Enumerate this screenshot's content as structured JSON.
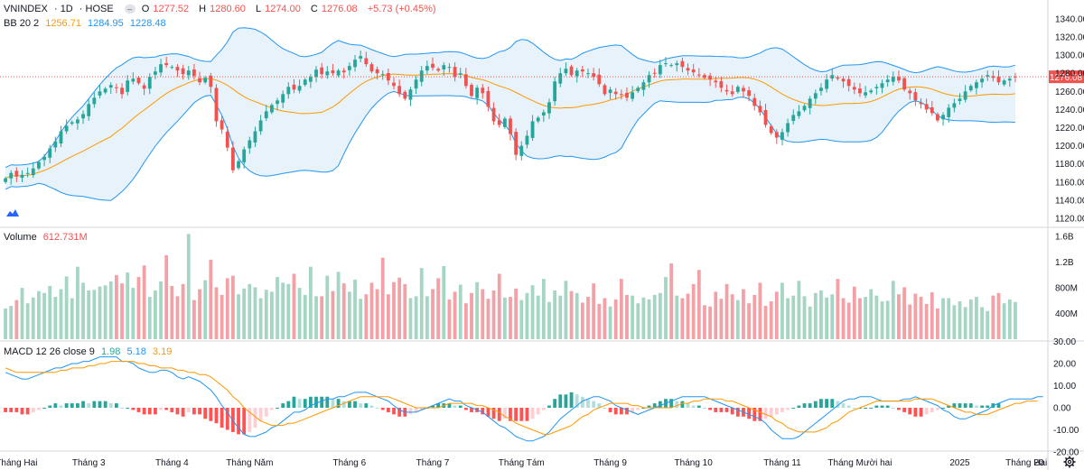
{
  "header": {
    "symbol": "VNINDEX",
    "interval": "1D",
    "exchange": "HOSE",
    "collapse_glyph": "–",
    "open_label": "O",
    "open": "1277.52",
    "high_label": "H",
    "high": "1280.60",
    "low_label": "L",
    "low": "1274.00",
    "close_label": "C",
    "close": "1276.08",
    "change": "+5.73 (+0.45%)"
  },
  "bb_legend": {
    "name": "BB 20 2",
    "basis": "1256.71",
    "upper": "1284.95",
    "lower": "1228.48"
  },
  "volume_legend": {
    "name": "Volume",
    "value": "612.731M"
  },
  "macd_legend": {
    "name": "MACD 12 26 close 9",
    "hist": "1.98",
    "macd": "5.18",
    "signal": "3.19"
  },
  "colors": {
    "up": "#26a69a",
    "down": "#ef5350",
    "vol_up": "#a5d6c3",
    "vol_down": "#f2a1a6",
    "bb_basis": "#ff9800",
    "bb_band": "#2196f3",
    "bb_fill": "#e3f0fa",
    "macd_line": "#2196f3",
    "signal_line": "#ff9800",
    "hist_up_strong": "#26a69a",
    "hist_up_weak": "#b2dfdb",
    "hist_down_strong": "#ff5252",
    "hist_down_weak": "#ffcdd2",
    "last_price_bg": "#ef5350",
    "text_down": "#ef5350"
  },
  "chart_data": [
    {
      "type": "candlestick",
      "title": "VNINDEX 1D HOSE",
      "ylim": [
        1110,
        1345
      ],
      "y_ticks": [
        "1340.00",
        "1320.00",
        "1300.00",
        "1280.00",
        "1260.00",
        "1240.00",
        "1220.00",
        "1200.00",
        "1180.00",
        "1160.00",
        "1140.00",
        "1120.00"
      ],
      "y_tick_values": [
        1340,
        1320,
        1300,
        1280,
        1260,
        1240,
        1220,
        1200,
        1180,
        1160,
        1140,
        1120
      ],
      "last_price": 1276.08,
      "last_price_label": "1276.08",
      "x_labels": [
        "Tháng Hai",
        "Tháng 3",
        "Tháng 4",
        "Tháng Năm",
        "Tháng 6",
        "Tháng 7",
        "Tháng Tám",
        "Tháng 9",
        "Tháng 10",
        "Tháng 11",
        "Tháng Mười hai",
        "2025",
        "Tháng Hai",
        "20"
      ],
      "x_label_bar_index": [
        2,
        15,
        30,
        44,
        62,
        77,
        93,
        109,
        124,
        140,
        154,
        172,
        184,
        196
      ],
      "closes": [
        1164,
        1170,
        1166,
        1168,
        1170,
        1175,
        1182,
        1188,
        1197,
        1205,
        1216,
        1222,
        1226,
        1229,
        1235,
        1246,
        1253,
        1260,
        1263,
        1267,
        1264,
        1257,
        1272,
        1274,
        1269,
        1263,
        1276,
        1282,
        1290,
        1289,
        1287,
        1283,
        1279,
        1283,
        1277,
        1270,
        1275,
        1265,
        1227,
        1218,
        1198,
        1173,
        1183,
        1196,
        1206,
        1216,
        1228,
        1238,
        1245,
        1250,
        1257,
        1265,
        1262,
        1266,
        1273,
        1276,
        1284,
        1279,
        1282,
        1280,
        1283,
        1281,
        1288,
        1295,
        1299,
        1290,
        1282,
        1280,
        1279,
        1272,
        1266,
        1257,
        1252,
        1262,
        1273,
        1283,
        1288,
        1286,
        1283,
        1289,
        1287,
        1276,
        1280,
        1266,
        1255,
        1264,
        1258,
        1243,
        1227,
        1223,
        1230,
        1213,
        1190,
        1200,
        1211,
        1227,
        1231,
        1237,
        1248,
        1271,
        1280,
        1285,
        1278,
        1283,
        1282,
        1280,
        1276,
        1268,
        1257,
        1262,
        1257,
        1256,
        1253,
        1259,
        1264,
        1270,
        1278,
        1280,
        1289,
        1291,
        1289,
        1291,
        1287,
        1283,
        1281,
        1278,
        1275,
        1273,
        1270,
        1264,
        1260,
        1257,
        1265,
        1260,
        1255,
        1244,
        1237,
        1223,
        1214,
        1209,
        1215,
        1225,
        1234,
        1238,
        1244,
        1252,
        1258,
        1264,
        1273,
        1278,
        1274,
        1271,
        1266,
        1262,
        1258,
        1259,
        1261,
        1265,
        1269,
        1273,
        1276,
        1272,
        1262,
        1258,
        1250,
        1246,
        1240,
        1236,
        1228,
        1234,
        1242,
        1247,
        1252,
        1260,
        1266,
        1270,
        1274,
        1278,
        1275,
        1270,
        1272,
        1274,
        1276
      ]
    },
    {
      "type": "bar",
      "title": "Volume",
      "y_ticks": [
        "1.6B",
        "1.2B",
        "800M",
        "400M"
      ],
      "y_tick_values": [
        1600,
        1200,
        800,
        400
      ],
      "ylim": [
        0,
        1750
      ],
      "unit": "M",
      "values": [
        480,
        520,
        610,
        800,
        560,
        650,
        750,
        720,
        830,
        660,
        780,
        980,
        640,
        1130,
        880,
        760,
        770,
        820,
        840,
        900,
        1000,
        870,
        1040,
        800,
        970,
        1150,
        660,
        760,
        900,
        1310,
        830,
        670,
        860,
        1640,
        610,
        780,
        920,
        1240,
        810,
        690,
        950,
        990,
        700,
        790,
        860,
        810,
        640,
        770,
        740,
        970,
        880,
        860,
        1020,
        800,
        690,
        1130,
        670,
        670,
        990,
        750,
        1050,
        870,
        740,
        930,
        630,
        700,
        880,
        780,
        1270,
        700,
        890,
        960,
        860,
        640,
        670,
        1110,
        670,
        780,
        950,
        1140,
        620,
        740,
        850,
        560,
        720,
        890,
        780,
        630,
        760,
        1020,
        650,
        660,
        790,
        610,
        720,
        840,
        680,
        940,
        580,
        760,
        680,
        910,
        750,
        720,
        570,
        660,
        870,
        550,
        640,
        510,
        620,
        940,
        690,
        680,
        560,
        650,
        620,
        690,
        720,
        970,
        1180,
        680,
        640,
        710,
        860,
        1080,
        530,
        510,
        740,
        630,
        860,
        700,
        610,
        780,
        560,
        690,
        880,
        520,
        590,
        740,
        880,
        640,
        680,
        910,
        670,
        510,
        720,
        760,
        650,
        700,
        940,
        640,
        570,
        820,
        640,
        660,
        780,
        680,
        590,
        600,
        910,
        700,
        810,
        540,
        710,
        660,
        550,
        730,
        480,
        640,
        640,
        530,
        590,
        500,
        620,
        660,
        500,
        440,
        680,
        720,
        560,
        620,
        580,
        480,
        600,
        520,
        530,
        620,
        700,
        640,
        590,
        760,
        690,
        650,
        613
      ]
    },
    {
      "type": "line",
      "title": "MACD 12 26 close 9",
      "y_ticks": [
        "30.00",
        "20.00",
        "10.00",
        "0.00",
        "-10.00",
        "-20.00"
      ],
      "y_tick_values": [
        30,
        20,
        10,
        0,
        -10,
        -20
      ],
      "ylim": [
        -22,
        30
      ],
      "series": [
        {
          "name": "MACD",
          "values": [
            16,
            15,
            14,
            13,
            13,
            14,
            15,
            16,
            17,
            18,
            18,
            19,
            20,
            20,
            21,
            21,
            22,
            23,
            23,
            23,
            23,
            21,
            21,
            20,
            18,
            17,
            16,
            16,
            17,
            17,
            16,
            14,
            13,
            14,
            13,
            12,
            10,
            8,
            5,
            1,
            -2,
            -6,
            -9,
            -12,
            -13,
            -13,
            -12,
            -11,
            -9,
            -8,
            -6,
            -4,
            -2,
            -2,
            -1,
            1,
            2,
            3,
            4,
            4,
            5,
            5,
            6,
            7,
            7,
            7,
            6,
            5,
            4,
            3,
            1,
            -1,
            -2,
            -2,
            -2,
            -1,
            0,
            1,
            2,
            3,
            4,
            3,
            3,
            1,
            0,
            -1,
            -2,
            -4,
            -6,
            -8,
            -9,
            -11,
            -13,
            -14,
            -15,
            -15,
            -14,
            -13,
            -11,
            -8,
            -5,
            -3,
            -1,
            1,
            3,
            4,
            5,
            5,
            4,
            3,
            1,
            0,
            -1,
            -2,
            -3,
            -2,
            -1,
            0,
            1,
            2,
            3,
            4,
            5,
            5,
            5,
            5,
            5,
            4,
            3,
            2,
            1,
            0,
            -1,
            -2,
            -3,
            -4,
            -5,
            -7,
            -10,
            -12,
            -14,
            -14,
            -14,
            -13,
            -11,
            -9,
            -7,
            -5,
            -3,
            -1,
            1,
            3,
            4,
            4,
            5,
            5,
            5,
            4,
            3,
            3,
            3,
            3,
            4,
            4,
            5,
            4,
            3,
            2,
            1,
            -1,
            -2,
            -4,
            -5,
            -5,
            -4,
            -3,
            -2,
            -1,
            1,
            2,
            3,
            4,
            4,
            4,
            4,
            4,
            5,
            5
          ]
        },
        {
          "name": "Signal",
          "values": [
            18,
            17,
            16,
            16,
            16,
            16,
            16,
            16,
            16,
            16,
            17,
            17,
            18,
            18,
            18,
            19,
            19,
            20,
            20,
            21,
            21,
            21,
            21,
            21,
            20,
            20,
            19,
            19,
            18,
            18,
            18,
            17,
            17,
            16,
            16,
            15,
            15,
            14,
            12,
            10,
            8,
            5,
            3,
            0,
            -2,
            -4,
            -6,
            -7,
            -8,
            -8,
            -8,
            -7,
            -7,
            -6,
            -5,
            -4,
            -3,
            -2,
            -1,
            0,
            1,
            2,
            3,
            4,
            5,
            5,
            5,
            5,
            5,
            5,
            4,
            3,
            2,
            1,
            0,
            0,
            0,
            0,
            0,
            1,
            2,
            2,
            2,
            2,
            2,
            1,
            1,
            0,
            -1,
            -2,
            -4,
            -5,
            -7,
            -8,
            -9,
            -10,
            -11,
            -12,
            -12,
            -11,
            -10,
            -9,
            -8,
            -6,
            -4,
            -3,
            -1,
            0,
            1,
            2,
            2,
            2,
            2,
            1,
            1,
            0,
            0,
            0,
            0,
            0,
            0,
            1,
            2,
            2,
            3,
            3,
            4,
            4,
            4,
            4,
            3,
            3,
            2,
            1,
            0,
            -1,
            -2,
            -3,
            -4,
            -6,
            -7,
            -9,
            -10,
            -11,
            -11,
            -11,
            -11,
            -10,
            -9,
            -7,
            -6,
            -4,
            -2,
            -1,
            0,
            1,
            2,
            3,
            3,
            3,
            3,
            3,
            3,
            3,
            4,
            4,
            4,
            4,
            3,
            2,
            1,
            0,
            -1,
            -2,
            -2,
            -3,
            -3,
            -3,
            -2,
            -1,
            0,
            1,
            2,
            2,
            3,
            3,
            3
          ]
        }
      ],
      "histogram": [
        -2,
        -2,
        -2,
        -3,
        -3,
        -2,
        -1,
        0,
        1,
        2,
        1,
        2,
        2,
        2,
        3,
        2,
        3,
        3,
        3,
        2,
        2,
        0,
        0,
        -1,
        -2,
        -3,
        -3,
        -3,
        -1,
        -1,
        -2,
        -3,
        -4,
        -2,
        -3,
        -3,
        -5,
        -6,
        -7,
        -9,
        -10,
        -11,
        -12,
        -12,
        -11,
        -9,
        -6,
        -4,
        -1,
        0,
        2,
        3,
        5,
        4,
        4,
        5,
        5,
        5,
        5,
        4,
        4,
        3,
        3,
        3,
        2,
        2,
        1,
        0,
        -1,
        -2,
        -3,
        -4,
        -4,
        -3,
        -2,
        -1,
        0,
        1,
        2,
        2,
        2,
        1,
        1,
        -1,
        -2,
        -2,
        -3,
        -4,
        -5,
        -6,
        -5,
        -6,
        -6,
        -6,
        -6,
        -5,
        -3,
        -1,
        1,
        4,
        6,
        6,
        7,
        6,
        5,
        4,
        3,
        2,
        0,
        -2,
        -3,
        -3,
        -3,
        -2,
        -1,
        0,
        1,
        2,
        3,
        4,
        4,
        3,
        3,
        2,
        1,
        1,
        0,
        -1,
        -2,
        -2,
        -2,
        -3,
        -4,
        -4,
        -5,
        -6,
        -6,
        -5,
        -4,
        -3,
        -2,
        -1,
        0,
        1,
        2,
        2,
        3,
        4,
        4,
        4,
        3,
        2,
        1,
        0,
        0,
        0,
        0,
        1,
        1,
        1,
        0,
        -1,
        -2,
        -3,
        -4,
        -4,
        -3,
        -2,
        -1,
        0,
        1,
        2,
        2,
        2,
        2,
        1,
        1,
        1,
        2,
        2
      ]
    }
  ]
}
